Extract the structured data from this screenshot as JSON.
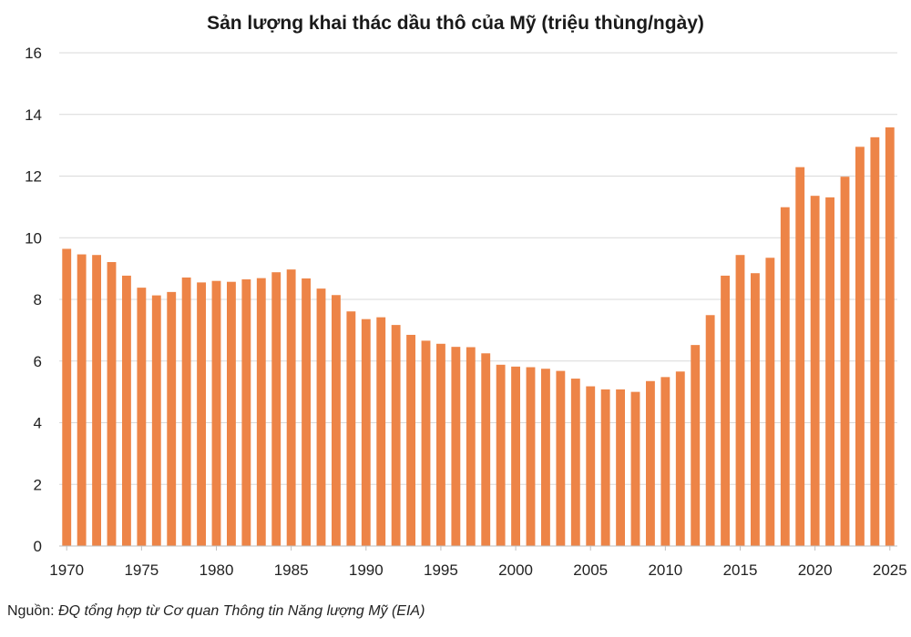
{
  "chart_data": {
    "type": "bar",
    "title": "Sản lượng khai thác dầu thô của Mỹ (triệu thùng/ngày)",
    "xlabel": "",
    "ylabel": "",
    "ylim": [
      0,
      16
    ],
    "yticks": [
      0,
      2,
      4,
      6,
      8,
      10,
      12,
      14,
      16
    ],
    "xticks": [
      1970,
      1975,
      1980,
      1985,
      1990,
      1995,
      2000,
      2005,
      2010,
      2015,
      2020,
      2025
    ],
    "grid": true,
    "legend": "none",
    "bar_color": "#ED8447",
    "grid_color": "#D9D9D9",
    "series": [
      {
        "name": "Sản lượng khai thác dầu thô",
        "x": [
          1970,
          1971,
          1972,
          1973,
          1974,
          1975,
          1976,
          1977,
          1978,
          1979,
          1980,
          1981,
          1982,
          1983,
          1984,
          1985,
          1986,
          1987,
          1988,
          1989,
          1990,
          1991,
          1992,
          1993,
          1994,
          1995,
          1996,
          1997,
          1998,
          1999,
          2000,
          2001,
          2002,
          2003,
          2004,
          2005,
          2006,
          2007,
          2008,
          2009,
          2010,
          2011,
          2012,
          2013,
          2014,
          2015,
          2016,
          2017,
          2018,
          2019,
          2020,
          2021,
          2022,
          2023,
          2024,
          2025
        ],
        "values": [
          9.64,
          9.46,
          9.44,
          9.21,
          8.77,
          8.38,
          8.13,
          8.24,
          8.71,
          8.55,
          8.6,
          8.57,
          8.65,
          8.69,
          8.88,
          8.97,
          8.68,
          8.35,
          8.14,
          7.61,
          7.36,
          7.42,
          7.17,
          6.85,
          6.66,
          6.56,
          6.46,
          6.45,
          6.25,
          5.88,
          5.82,
          5.8,
          5.75,
          5.68,
          5.43,
          5.18,
          5.08,
          5.08,
          5.0,
          5.35,
          5.48,
          5.66,
          6.52,
          7.49,
          8.77,
          9.44,
          8.85,
          9.35,
          10.99,
          12.29,
          11.36,
          11.31,
          11.98,
          12.95,
          13.26,
          13.58
        ]
      }
    ]
  },
  "source": {
    "label": "Nguồn:",
    "text": "ĐQ tổng hợp từ Cơ quan Thông tin Năng lượng Mỹ (EIA)"
  }
}
